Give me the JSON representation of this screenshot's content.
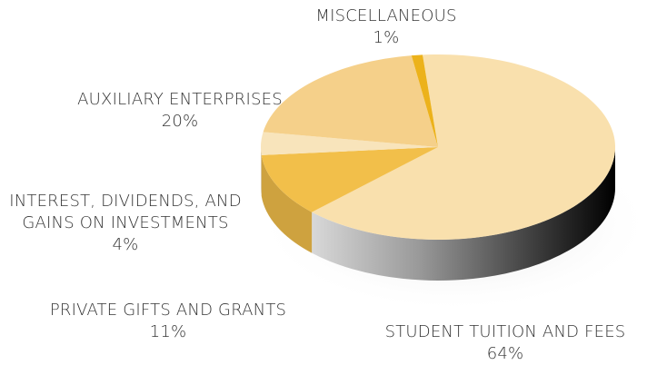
{
  "chart_data": {
    "type": "pie",
    "categories": [
      "STUDENT TUITION AND FEES",
      "PRIVATE GIFTS AND GRANTS",
      "INTEREST, DIVIDENDS, AND GAINS ON INVESTMENTS",
      "AUXILIARY ENTERPRISES",
      "MISCELLANEOUS"
    ],
    "values": [
      64,
      11,
      4,
      20,
      1
    ],
    "value_labels": [
      "64%",
      "11%",
      "4%",
      "20%",
      "1%"
    ],
    "colors": [
      "#f9e0ad",
      "#f2bf4a",
      "#f8e4bb",
      "#f5d08a",
      "#ecb21b"
    ]
  }
}
